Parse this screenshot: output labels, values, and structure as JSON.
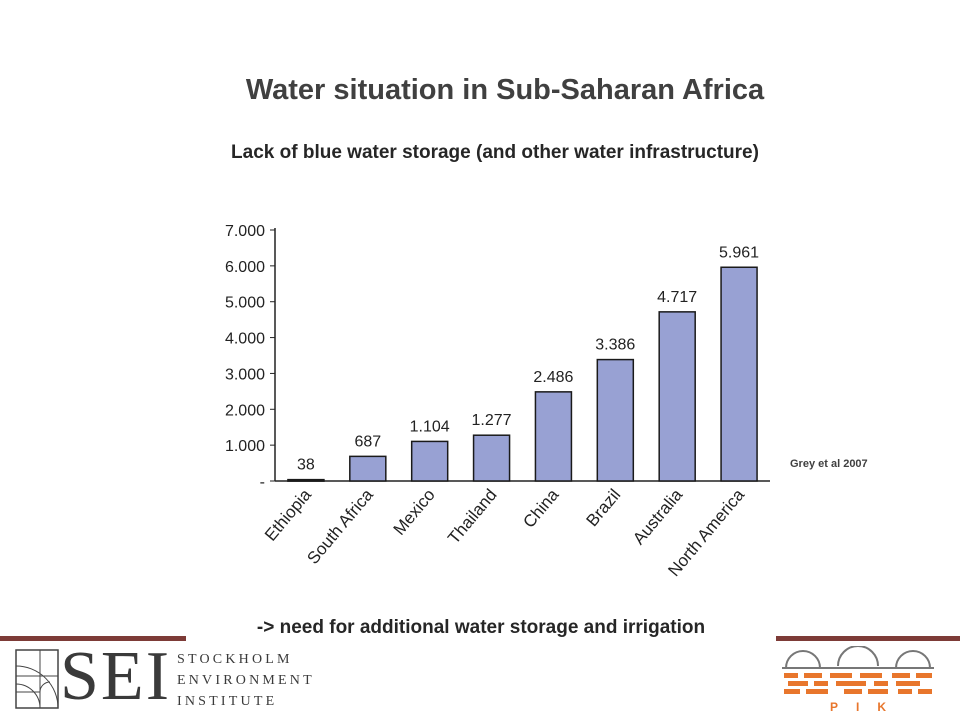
{
  "slide": {
    "title": "Water situation in Sub-Saharan Africa",
    "subtitle": "Lack of blue water storage (and other water infrastructure)",
    "source": "Grey et al 2007",
    "conclusion": "-> need for additional water storage and irrigation"
  },
  "logos": {
    "sei": {
      "letters": "SEI",
      "line1": "STOCKHOLM",
      "line2": "ENVIRONMENT",
      "line3": "INSTITUTE"
    },
    "pik": {
      "text": "PIK"
    }
  },
  "colors": {
    "bar": "#98a1d3",
    "bar_outline": "#1a1a1a",
    "rule": "#7d3b37",
    "pik_orange": "#e8762c"
  },
  "chart_data": {
    "type": "bar",
    "categories": [
      "Ethiopia",
      "South Africa",
      "Mexico",
      "Thailand",
      "China",
      "Brazil",
      "Australia",
      "North America"
    ],
    "values": [
      38,
      687,
      1104,
      1277,
      2486,
      3386,
      4717,
      5961
    ],
    "data_labels": [
      "38",
      "687",
      "1.104",
      "1.277",
      "2.486",
      "3.386",
      "4.717",
      "5.961"
    ],
    "y_ticks": [
      0,
      1000,
      2000,
      3000,
      4000,
      5000,
      6000,
      7000
    ],
    "y_tick_labels": [
      "-",
      "1.000",
      "2.000",
      "3.000",
      "4.000",
      "5.000",
      "6.000",
      "7.000"
    ],
    "ylim": [
      0,
      7000
    ],
    "grid": false,
    "legend": "none"
  }
}
